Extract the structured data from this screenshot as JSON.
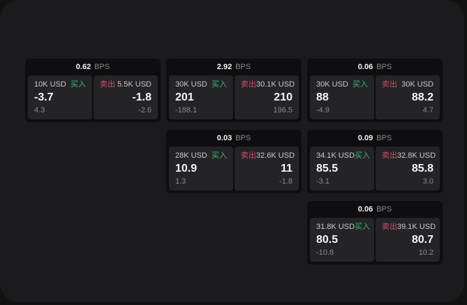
{
  "theme": {
    "page_bg": "#121212",
    "panel_bg": "#1b1b1d",
    "card_bg": "#0e0e10",
    "tile_bg": "#242427",
    "buy_color": "#3cb873",
    "sell_color": "#cf4a67",
    "text_primary": "#f5f5f5",
    "text_secondary": "#c9c9c9",
    "text_muted": "#8a8a8a"
  },
  "labels": {
    "bps": "BPS",
    "buy": "买入",
    "sell": "卖出"
  },
  "cards": [
    {
      "bps": "0.62",
      "buy": {
        "size": "10K USD",
        "price": "-3.7",
        "delta": "4.3"
      },
      "sell": {
        "size": "5.5K USD",
        "price": "-1.8",
        "delta": "-2.6"
      }
    },
    {
      "bps": "2.92",
      "buy": {
        "size": "30K USD",
        "price": "201",
        "delta": "-188.1"
      },
      "sell": {
        "size": "30.1K USD",
        "price": "210",
        "delta": "196.5"
      }
    },
    {
      "bps": "0.06",
      "buy": {
        "size": "30K USD",
        "price": "88",
        "delta": "-4.9"
      },
      "sell": {
        "size": "30K USD",
        "price": "88.2",
        "delta": "4.7"
      }
    },
    {
      "bps": "0.03",
      "buy": {
        "size": "28K USD",
        "price": "10.9",
        "delta": "1.3"
      },
      "sell": {
        "size": "32.6K USD",
        "price": "11",
        "delta": "-1.8"
      }
    },
    {
      "bps": "0.09",
      "buy": {
        "size": "34.1K USD",
        "price": "85.5",
        "delta": "-3.1"
      },
      "sell": {
        "size": "32.8K USD",
        "price": "85.8",
        "delta": "3.0"
      }
    },
    {
      "bps": "0.06",
      "buy": {
        "size": "31.8K USD",
        "price": "80.5",
        "delta": "-10.8"
      },
      "sell": {
        "size": "39.1K USD",
        "price": "80.7",
        "delta": "10.2"
      }
    }
  ]
}
